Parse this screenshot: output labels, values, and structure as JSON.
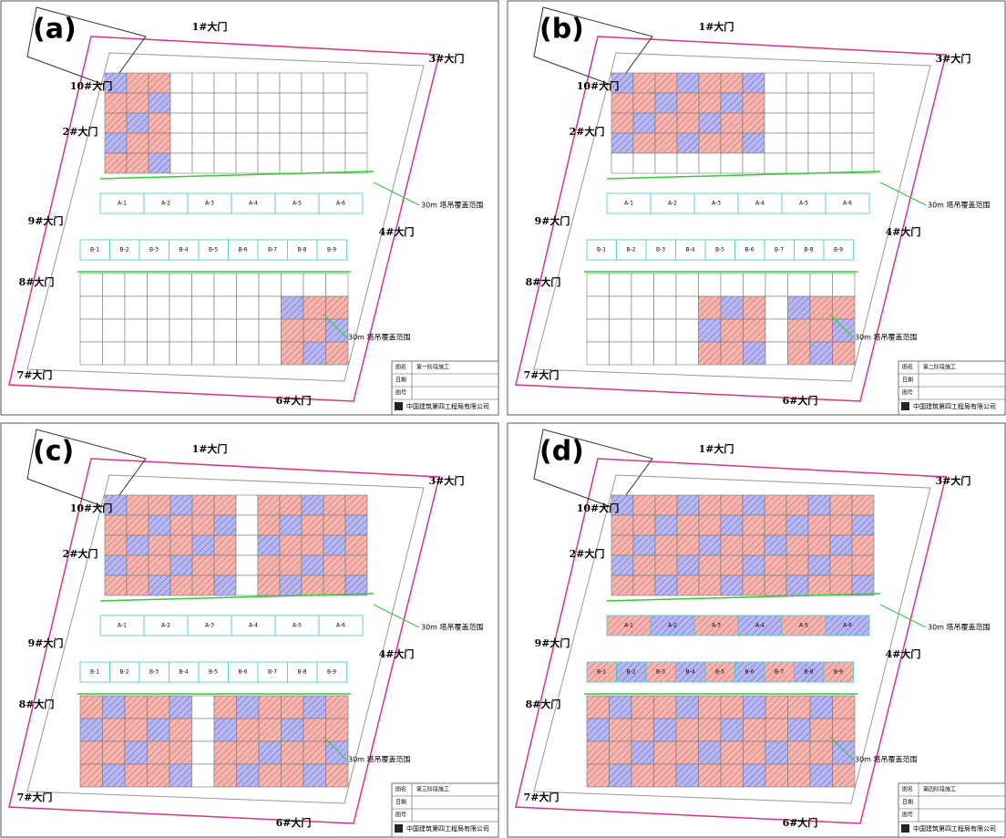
{
  "panels": [
    {
      "label": "(a)",
      "stage": "第一阶段施工"
    },
    {
      "label": "(b)",
      "stage": "第二阶段施工"
    },
    {
      "label": "(c)",
      "stage": "第三阶段施工"
    },
    {
      "label": "(d)",
      "stage": "第四阶段施工"
    }
  ],
  "gates": [
    "1#大门",
    "3#大门",
    "10#大门",
    "2#大门",
    "9#大门",
    "4#大门",
    "8#大门",
    "7#大门",
    "6#大门"
  ],
  "coverage_label": "30m 塔吊覆盖范围",
  "zones_a": [
    "A-1",
    "A-2",
    "A-3",
    "A-4",
    "A-5",
    "A-6"
  ],
  "zones_b": [
    "B-1",
    "B-2",
    "B-3",
    "B-4",
    "B-5",
    "B-6",
    "B-7",
    "B-8",
    "B-9"
  ],
  "title_block": {
    "name_label": "图名",
    "date_label": "日期",
    "number_label": "图号",
    "company": "中国建筑第四工程局有限公司"
  }
}
